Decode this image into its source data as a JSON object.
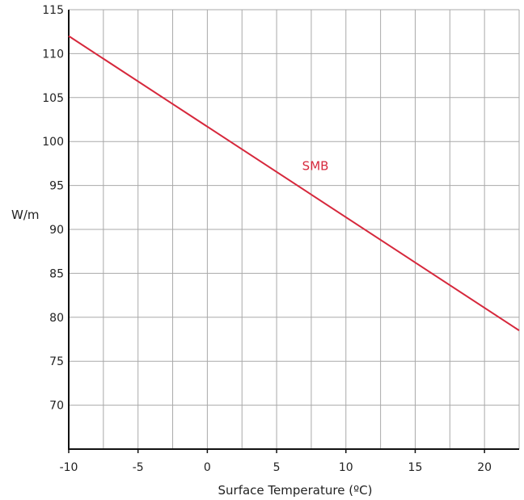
{
  "chart_data": {
    "type": "line",
    "title": "",
    "xlabel": "Surface Temperature (ºC)",
    "ylabel": "W/m",
    "xlim": [
      -10,
      22.5
    ],
    "ylim": [
      65,
      115
    ],
    "x_ticks": [
      "-10",
      "-5",
      "0",
      "5",
      "10",
      "15",
      "20"
    ],
    "y_ticks": [
      "70",
      "75",
      "80",
      "85",
      "90",
      "95",
      "100",
      "105",
      "110",
      "115"
    ],
    "grid": true,
    "series": [
      {
        "name": "SMB",
        "color": "#d6283c",
        "x": [
          -10,
          22.5
        ],
        "y": [
          112,
          78.5
        ]
      }
    ]
  }
}
